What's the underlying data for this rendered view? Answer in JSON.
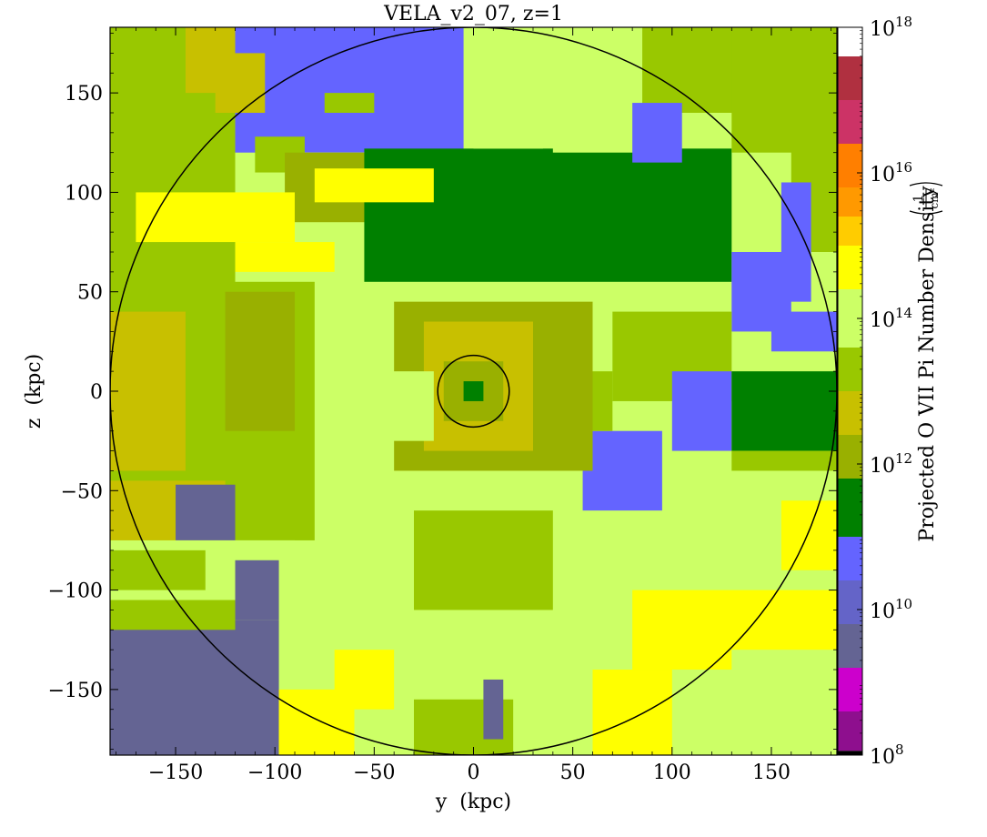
{
  "chart_data": {
    "type": "heatmap",
    "title": "VELA_v2_07, z=1",
    "xlabel": "y  (kpc)",
    "ylabel": "z  (kpc)",
    "xlim": [
      -183,
      183
    ],
    "ylim": [
      -183,
      183
    ],
    "xticks": [
      -150,
      -100,
      -50,
      0,
      50,
      100,
      150
    ],
    "yticks": [
      -150,
      -100,
      -50,
      0,
      50,
      100,
      150
    ],
    "xtick_labels": [
      "−150",
      "−100",
      "−50",
      "0",
      "50",
      "100",
      "150"
    ],
    "ytick_labels": [
      "−150",
      "−100",
      "−50",
      "0",
      "50",
      "100",
      "150"
    ],
    "grid": false,
    "colorbar": {
      "label": "Projected O VII Pi Number Density",
      "unit_numerator": "1",
      "unit_denominator": "cm²",
      "scale": "log",
      "range_log10": [
        8,
        18
      ],
      "tick_exponents": [
        8,
        10,
        12,
        14,
        16,
        18
      ],
      "tick_base": "10",
      "levels": [
        {
          "log_min": 8.0,
          "log_max": 8.06,
          "color": "#000000"
        },
        {
          "log_min": 8.06,
          "log_max": 8.6,
          "color": "#8e0f8e"
        },
        {
          "log_min": 8.6,
          "log_max": 9.2,
          "color": "#cc00cc"
        },
        {
          "log_min": 9.2,
          "log_max": 9.8,
          "color": "#646493"
        },
        {
          "log_min": 9.8,
          "log_max": 10.4,
          "color": "#6464c8"
        },
        {
          "log_min": 10.4,
          "log_max": 11.0,
          "color": "#6464ff"
        },
        {
          "log_min": 11.0,
          "log_max": 11.8,
          "color": "#008000"
        },
        {
          "log_min": 11.8,
          "log_max": 12.4,
          "color": "#99b000"
        },
        {
          "log_min": 12.4,
          "log_max": 13.0,
          "color": "#c8c000"
        },
        {
          "log_min": 13.0,
          "log_max": 13.6,
          "color": "#99c800"
        },
        {
          "log_min": 13.6,
          "log_max": 14.4,
          "color": "#ccff66"
        },
        {
          "log_min": 14.4,
          "log_max": 15.0,
          "color": "#ffff00"
        },
        {
          "log_min": 15.0,
          "log_max": 15.4,
          "color": "#ffcc00"
        },
        {
          "log_min": 15.4,
          "log_max": 15.8,
          "color": "#ff9900"
        },
        {
          "log_min": 15.8,
          "log_max": 16.4,
          "color": "#ff7f00"
        },
        {
          "log_min": 16.4,
          "log_max": 17.0,
          "color": "#cc3366"
        },
        {
          "log_min": 17.0,
          "log_max": 17.6,
          "color": "#b03040"
        },
        {
          "log_min": 17.6,
          "log_max": 18.0,
          "color": "#ffffff"
        }
      ]
    },
    "overlays": [
      {
        "type": "circle",
        "center": [
          0,
          0
        ],
        "radius_kpc": 183,
        "color": "#000000"
      },
      {
        "type": "circle",
        "center": [
          0,
          0
        ],
        "radius_kpc": 18,
        "color": "#000000"
      }
    ],
    "background_level_color": "#ccff66",
    "regions": [
      {
        "x": [
          -183,
          -120
        ],
        "y": [
          50,
          183
        ],
        "color": "#99c800"
      },
      {
        "x": [
          -145,
          -120
        ],
        "y": [
          150,
          183
        ],
        "color": "#c8c000"
      },
      {
        "x": [
          -130,
          -90
        ],
        "y": [
          165,
          183
        ],
        "color": "#c8c000"
      },
      {
        "x": [
          -120,
          -5
        ],
        "y": [
          120,
          183
        ],
        "color": "#6464ff"
      },
      {
        "x": [
          -130,
          -105
        ],
        "y": [
          140,
          170
        ],
        "color": "#c8c000"
      },
      {
        "x": [
          -75,
          -50
        ],
        "y": [
          140,
          150
        ],
        "color": "#99c800"
      },
      {
        "x": [
          -100,
          0
        ],
        "y": [
          100,
          120
        ],
        "color": "#ccff66"
      },
      {
        "x": [
          -110,
          -85
        ],
        "y": [
          110,
          128
        ],
        "color": "#99c800"
      },
      {
        "x": [
          -95,
          0
        ],
        "y": [
          85,
          120
        ],
        "color": "#99b000"
      },
      {
        "x": [
          -55,
          130
        ],
        "y": [
          55,
          122
        ],
        "color": "#008000"
      },
      {
        "x": [
          0,
          35
        ],
        "y": [
          122,
          183
        ],
        "color": "#ccff66"
      },
      {
        "x": [
          40,
          85
        ],
        "y": [
          120,
          183
        ],
        "color": "#ccff66"
      },
      {
        "x": [
          85,
          183
        ],
        "y": [
          140,
          183
        ],
        "color": "#99c800"
      },
      {
        "x": [
          80,
          105
        ],
        "y": [
          115,
          145
        ],
        "color": "#6464ff"
      },
      {
        "x": [
          130,
          170
        ],
        "y": [
          120,
          183
        ],
        "color": "#99c800"
      },
      {
        "x": [
          160,
          183
        ],
        "y": [
          70,
          150
        ],
        "color": "#99c800"
      },
      {
        "x": [
          155,
          170
        ],
        "y": [
          45,
          105
        ],
        "color": "#6464ff"
      },
      {
        "x": [
          130,
          160
        ],
        "y": [
          30,
          70
        ],
        "color": "#6464ff"
      },
      {
        "x": [
          150,
          183
        ],
        "y": [
          20,
          40
        ],
        "color": "#6464ff"
      },
      {
        "x": [
          70,
          130
        ],
        "y": [
          -5,
          40
        ],
        "color": "#99c800"
      },
      {
        "x": [
          100,
          130
        ],
        "y": [
          -30,
          10
        ],
        "color": "#6464ff"
      },
      {
        "x": [
          130,
          183
        ],
        "y": [
          -30,
          10
        ],
        "color": "#008000"
      },
      {
        "x": [
          130,
          183
        ],
        "y": [
          -40,
          -30
        ],
        "color": "#99c800"
      },
      {
        "x": [
          55,
          95
        ],
        "y": [
          -60,
          -20
        ],
        "color": "#6464ff"
      },
      {
        "x": [
          40,
          70
        ],
        "y": [
          -20,
          10
        ],
        "color": "#99c800"
      },
      {
        "x": [
          -183,
          -80
        ],
        "y": [
          -75,
          55
        ],
        "color": "#99c800"
      },
      {
        "x": [
          -183,
          -145
        ],
        "y": [
          -40,
          40
        ],
        "color": "#c8c000"
      },
      {
        "x": [
          -125,
          -90
        ],
        "y": [
          -20,
          50
        ],
        "color": "#99b000"
      },
      {
        "x": [
          -183,
          -125
        ],
        "y": [
          -75,
          -45
        ],
        "color": "#c8c000"
      },
      {
        "x": [
          -150,
          -120
        ],
        "y": [
          -75,
          -47
        ],
        "color": "#646493"
      },
      {
        "x": [
          -183,
          -90
        ],
        "y": [
          -110,
          -75
        ],
        "color": "#ccff66"
      },
      {
        "x": [
          -183,
          -135
        ],
        "y": [
          -100,
          -80
        ],
        "color": "#99c800"
      },
      {
        "x": [
          -183,
          -98
        ],
        "y": [
          -183,
          -115
        ],
        "color": "#646493"
      },
      {
        "x": [
          -183,
          -120
        ],
        "y": [
          -120,
          -105
        ],
        "color": "#99c800"
      },
      {
        "x": [
          -120,
          -98
        ],
        "y": [
          -115,
          -85
        ],
        "color": "#646493"
      },
      {
        "x": [
          -98,
          -60
        ],
        "y": [
          -183,
          -150
        ],
        "color": "#ffff00"
      },
      {
        "x": [
          -70,
          -40
        ],
        "y": [
          -160,
          -130
        ],
        "color": "#ffff00"
      },
      {
        "x": [
          -30,
          20
        ],
        "y": [
          -183,
          -155
        ],
        "color": "#99c800"
      },
      {
        "x": [
          5,
          15
        ],
        "y": [
          -175,
          -145
        ],
        "color": "#646493"
      },
      {
        "x": [
          60,
          100
        ],
        "y": [
          -183,
          -140
        ],
        "color": "#ffff00"
      },
      {
        "x": [
          80,
          183
        ],
        "y": [
          -140,
          -100
        ],
        "color": "#ffff00"
      },
      {
        "x": [
          130,
          183
        ],
        "y": [
          -183,
          -130
        ],
        "color": "#ccff66"
      },
      {
        "x": [
          155,
          183
        ],
        "y": [
          -90,
          -55
        ],
        "color": "#ffff00"
      },
      {
        "x": [
          -30,
          40
        ],
        "y": [
          -110,
          -60
        ],
        "color": "#99c800"
      },
      {
        "x": [
          -170,
          -90
        ],
        "y": [
          75,
          100
        ],
        "color": "#ffff00"
      },
      {
        "x": [
          -80,
          -20
        ],
        "y": [
          95,
          112
        ],
        "color": "#ffff00"
      },
      {
        "x": [
          -120,
          -70
        ],
        "y": [
          60,
          75
        ],
        "color": "#ffff00"
      },
      {
        "x": [
          -40,
          60
        ],
        "y": [
          -40,
          45
        ],
        "color": "#99b000"
      },
      {
        "x": [
          -25,
          30
        ],
        "y": [
          -30,
          35
        ],
        "color": "#c8c000"
      },
      {
        "x": [
          -60,
          -20
        ],
        "y": [
          -25,
          10
        ],
        "color": "#ccff66"
      },
      {
        "x": [
          -15,
          15
        ],
        "y": [
          -15,
          15
        ],
        "color": "#99b000"
      },
      {
        "x": [
          -5,
          5
        ],
        "y": [
          -5,
          5
        ],
        "color": "#008000"
      }
    ]
  }
}
